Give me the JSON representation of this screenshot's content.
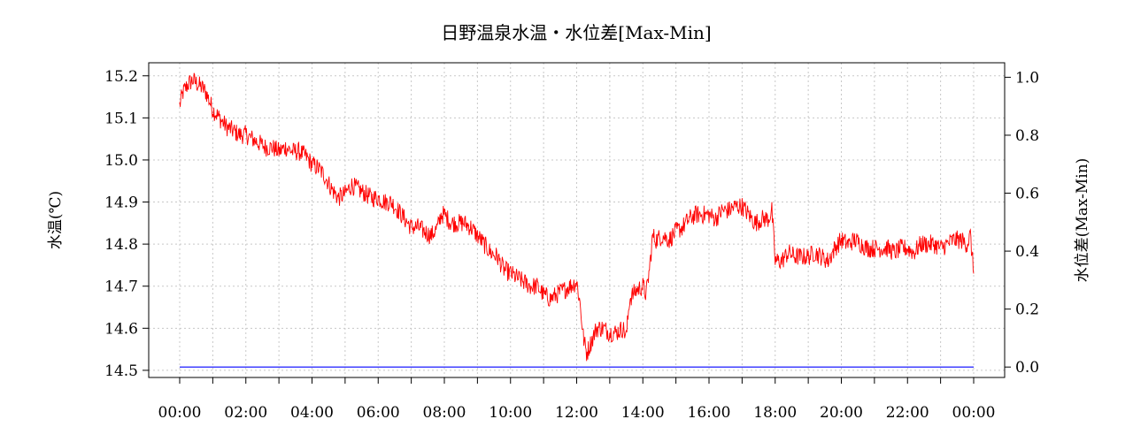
{
  "chart_data": {
    "type": "line",
    "title": "日野温泉水温・水位差[Max-Min]",
    "ylabel": "水温(℃)",
    "y2label": "水位差(Max-Min)",
    "x_ticks": [
      "00:00",
      "02:00",
      "04:00",
      "06:00",
      "08:00",
      "10:00",
      "12:00",
      "14:00",
      "16:00",
      "18:00",
      "20:00",
      "22:00",
      "00:00"
    ],
    "y_ticks": [
      "14.5",
      "14.6",
      "14.7",
      "14.8",
      "14.9",
      "15.0",
      "15.1",
      "15.2"
    ],
    "y2_ticks": [
      "0.0",
      "0.2",
      "0.4",
      "0.6",
      "0.8",
      "1.0"
    ],
    "ylim": [
      14.483,
      15.231
    ],
    "y2lim": [
      -0.036,
      1.05
    ],
    "xlim_hours": [
      0,
      24
    ],
    "grid": true,
    "series": [
      {
        "axis": "left",
        "color": "#ff0000",
        "x": [
          0.0,
          0.1,
          0.25,
          0.4,
          0.55,
          0.7,
          0.8,
          0.9,
          1.0,
          1.2,
          1.4,
          1.6,
          1.8,
          2.0,
          2.2,
          2.4,
          2.6,
          2.8,
          3.0,
          3.2,
          3.4,
          3.6,
          3.8,
          4.0,
          4.2,
          4.4,
          4.6,
          4.8,
          5.0,
          5.2,
          5.4,
          5.6,
          5.8,
          6.0,
          6.2,
          6.4,
          6.6,
          6.8,
          7.0,
          7.2,
          7.4,
          7.6,
          7.8,
          7.9,
          8.0,
          8.2,
          8.4,
          8.6,
          8.8,
          9.0,
          9.2,
          9.4,
          9.6,
          9.8,
          10.0,
          10.2,
          10.4,
          10.6,
          10.8,
          11.0,
          11.2,
          11.4,
          11.6,
          11.8,
          12.0,
          12.1,
          12.2,
          12.3,
          12.4,
          12.5,
          12.6,
          12.8,
          13.0,
          13.2,
          13.4,
          13.5,
          13.6,
          13.8,
          14.0,
          14.1,
          14.2,
          14.3,
          14.4,
          14.6,
          14.8,
          15.0,
          15.2,
          15.4,
          15.6,
          15.8,
          16.0,
          16.2,
          16.4,
          16.6,
          16.8,
          17.0,
          17.2,
          17.4,
          17.6,
          17.8,
          17.9,
          18.0,
          18.2,
          18.4,
          18.6,
          18.8,
          19.0,
          19.2,
          19.4,
          19.6,
          19.8,
          20.0,
          20.2,
          20.4,
          20.6,
          20.8,
          21.0,
          21.2,
          21.4,
          21.6,
          21.8,
          22.0,
          22.2,
          22.4,
          22.6,
          22.8,
          23.0,
          23.2,
          23.4,
          23.6,
          23.8,
          23.9,
          24.0
        ],
        "values": [
          15.13,
          15.16,
          15.18,
          15.19,
          15.18,
          15.17,
          15.16,
          15.14,
          15.12,
          15.1,
          15.08,
          15.07,
          15.06,
          15.06,
          15.05,
          15.04,
          15.03,
          15.03,
          15.02,
          15.03,
          15.02,
          15.02,
          15.01,
          14.99,
          14.98,
          14.96,
          14.93,
          14.91,
          14.92,
          14.94,
          14.93,
          14.92,
          14.91,
          14.91,
          14.9,
          14.9,
          14.88,
          14.86,
          14.84,
          14.84,
          14.83,
          14.82,
          14.84,
          14.87,
          14.87,
          14.85,
          14.85,
          14.85,
          14.84,
          14.82,
          14.8,
          14.78,
          14.77,
          14.74,
          14.73,
          14.72,
          14.71,
          14.7,
          14.7,
          14.68,
          14.67,
          14.68,
          14.69,
          14.7,
          14.71,
          14.66,
          14.58,
          14.54,
          14.56,
          14.58,
          14.6,
          14.6,
          14.59,
          14.59,
          14.6,
          14.58,
          14.67,
          14.69,
          14.7,
          14.68,
          14.74,
          14.82,
          14.81,
          14.82,
          14.81,
          14.83,
          14.84,
          14.86,
          14.87,
          14.87,
          14.87,
          14.86,
          14.88,
          14.88,
          14.89,
          14.89,
          14.87,
          14.85,
          14.86,
          14.86,
          14.88,
          14.76,
          14.76,
          14.78,
          14.77,
          14.77,
          14.77,
          14.78,
          14.77,
          14.76,
          14.79,
          14.81,
          14.8,
          14.81,
          14.8,
          14.79,
          14.79,
          14.79,
          14.79,
          14.78,
          14.79,
          14.79,
          14.78,
          14.8,
          14.8,
          14.8,
          14.79,
          14.8,
          14.81,
          14.81,
          14.8,
          14.82,
          14.73
        ]
      },
      {
        "axis": "right",
        "color": "#0000ff",
        "x": [
          0,
          24
        ],
        "values": [
          0.0,
          0.0
        ]
      }
    ]
  }
}
